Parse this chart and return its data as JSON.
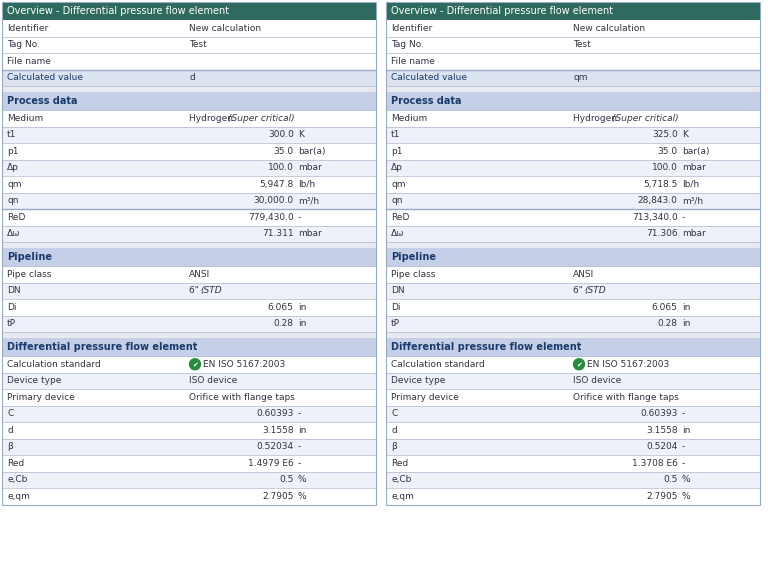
{
  "header_bg": "#2e6b5e",
  "header_text_color": "#ffffff",
  "section_header_bg": "#c5cfe8",
  "section_header_text_color": "#1a3a6b",
  "calc_value_bg": "#dce3f0",
  "white_bg": "#ffffff",
  "alt_bg": "#eef1f8",
  "text_color": "#333344",
  "border_color": "#9aaac5",
  "gap_color": "#e8eaf0",
  "panels": [
    {
      "title": "Overview - Differential pressure flow element",
      "overview_rows": [
        [
          "Identifier",
          "New calculation"
        ],
        [
          "Tag No.",
          "Test"
        ],
        [
          "File name",
          ""
        ]
      ],
      "calc_label": "Calculated value",
      "calc_value": "d",
      "sections": [
        {
          "name": "Process data",
          "rows": [
            {
              "label": "Medium",
              "value": "Hydrogen",
              "value2": "(Super critical)",
              "unit": "",
              "style": "medium"
            },
            {
              "label": "t1",
              "value": "300.0",
              "unit": "K",
              "style": "numeric"
            },
            {
              "label": "p1",
              "value": "35.0",
              "unit": "bar(a)",
              "style": "numeric"
            },
            {
              "label": "Δp",
              "value": "100.0",
              "unit": "mbar",
              "style": "numeric"
            },
            {
              "label": "qm",
              "value": "5,947.8",
              "unit": "lb/h",
              "style": "numeric"
            },
            {
              "label": "qn",
              "value": "30,000.0",
              "unit": "m³/h",
              "style": "numeric"
            },
            {
              "label": "ReD",
              "value": "779,430.0",
              "unit": "-",
              "style": "numeric_sep"
            },
            {
              "label": "Δω",
              "value": "71.311",
              "unit": "mbar",
              "style": "numeric"
            }
          ]
        },
        {
          "name": "Pipeline",
          "rows": [
            {
              "label": "Pipe class",
              "value": "ANSI",
              "unit": "",
              "style": "text"
            },
            {
              "label": "DN",
              "value": "6\" (STD)",
              "unit": "",
              "style": "text_italic"
            },
            {
              "label": "Di",
              "value": "6.065",
              "unit": "in",
              "style": "numeric"
            },
            {
              "label": "tP",
              "value": "0.28",
              "unit": "in",
              "style": "numeric"
            }
          ]
        },
        {
          "name": "Differential pressure flow element",
          "rows": [
            {
              "label": "Calculation standard",
              "value": "EN ISO 5167:2003",
              "unit": "",
              "style": "check"
            },
            {
              "label": "Device type",
              "value": "ISO device",
              "unit": "",
              "style": "text"
            },
            {
              "label": "Primary device",
              "value": "Orifice with flange taps",
              "unit": "",
              "style": "text"
            },
            {
              "label": "C",
              "value": "0.60393",
              "unit": "-",
              "style": "numeric"
            },
            {
              "label": "d",
              "value": "3.1558",
              "unit": "in",
              "style": "numeric"
            },
            {
              "label": "β",
              "value": "0.52034",
              "unit": "-",
              "style": "numeric"
            },
            {
              "label": "Red",
              "value": "1.4979 E6",
              "unit": "-",
              "style": "numeric"
            },
            {
              "label": "e,Cb",
              "value": "0.5",
              "unit": "%",
              "style": "numeric"
            },
            {
              "label": "e,qm",
              "value": "2.7905",
              "unit": "%",
              "style": "numeric"
            }
          ]
        }
      ]
    },
    {
      "title": "Overview - Differential pressure flow element",
      "overview_rows": [
        [
          "Identifier",
          "New calculation"
        ],
        [
          "Tag No.",
          "Test"
        ],
        [
          "File name",
          ""
        ]
      ],
      "calc_label": "Calculated value",
      "calc_value": "qm",
      "sections": [
        {
          "name": "Process data",
          "rows": [
            {
              "label": "Medium",
              "value": "Hydrogen",
              "value2": "(Super critical)",
              "unit": "",
              "style": "medium"
            },
            {
              "label": "t1",
              "value": "325.0",
              "unit": "K",
              "style": "numeric"
            },
            {
              "label": "p1",
              "value": "35.0",
              "unit": "bar(a)",
              "style": "numeric"
            },
            {
              "label": "Δp",
              "value": "100.0",
              "unit": "mbar",
              "style": "numeric"
            },
            {
              "label": "qm",
              "value": "5,718.5",
              "unit": "lb/h",
              "style": "numeric"
            },
            {
              "label": "qn",
              "value": "28,843.0",
              "unit": "m³/h",
              "style": "numeric"
            },
            {
              "label": "ReD",
              "value": "713,340.0",
              "unit": "-",
              "style": "numeric_sep"
            },
            {
              "label": "Δω",
              "value": "71.306",
              "unit": "mbar",
              "style": "numeric"
            }
          ]
        },
        {
          "name": "Pipeline",
          "rows": [
            {
              "label": "Pipe class",
              "value": "ANSI",
              "unit": "",
              "style": "text"
            },
            {
              "label": "DN",
              "value": "6\" (STD)",
              "unit": "",
              "style": "text_italic"
            },
            {
              "label": "Di",
              "value": "6.065",
              "unit": "in",
              "style": "numeric"
            },
            {
              "label": "tP",
              "value": "0.28",
              "unit": "in",
              "style": "numeric"
            }
          ]
        },
        {
          "name": "Differential pressure flow element",
          "rows": [
            {
              "label": "Calculation standard",
              "value": "EN ISO 5167:2003",
              "unit": "",
              "style": "check"
            },
            {
              "label": "Device type",
              "value": "ISO device",
              "unit": "",
              "style": "text"
            },
            {
              "label": "Primary device",
              "value": "Orifice with flange taps",
              "unit": "",
              "style": "text"
            },
            {
              "label": "C",
              "value": "0.60393",
              "unit": "-",
              "style": "numeric"
            },
            {
              "label": "d",
              "value": "3.1558",
              "unit": "in",
              "style": "numeric"
            },
            {
              "label": "β",
              "value": "0.5204",
              "unit": "-",
              "style": "numeric"
            },
            {
              "label": "Red",
              "value": "1.3708 E6",
              "unit": "-",
              "style": "numeric"
            },
            {
              "label": "e,Cb",
              "value": "0.5",
              "unit": "%",
              "style": "numeric"
            },
            {
              "label": "e,qm",
              "value": "2.7905",
              "unit": "%",
              "style": "numeric"
            }
          ]
        }
      ]
    }
  ]
}
